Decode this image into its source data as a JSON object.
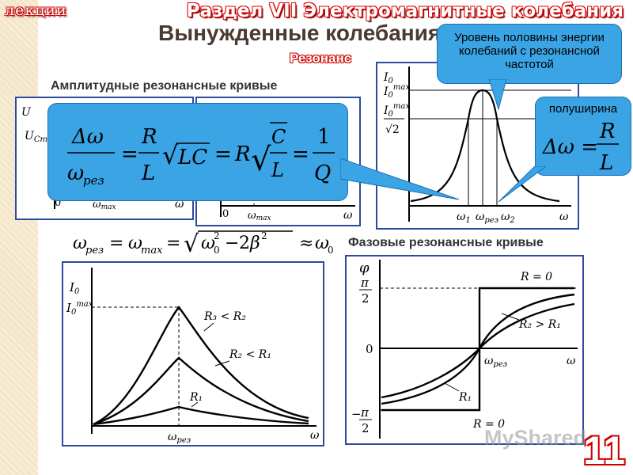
{
  "header": {
    "lecture_tag": "лекции",
    "section": "Раздел VII Электромагнитные колебания",
    "title": "Вынужденные колебания",
    "subtitle": "Резонанс"
  },
  "labels": {
    "amplitude": "Амплитудные резонансные кривые",
    "phase": "Фазовые резонансные кривые"
  },
  "callouts": {
    "half_energy": "Уровень половины энергии колебаний с резонансной частотой",
    "half_width": "полуширина"
  },
  "axes": {
    "I0": "I",
    "I0_sub": "0",
    "max": "max",
    "sqrt2": "√2",
    "omega": "ω",
    "omega1": "ω",
    "omega1_sub": "1",
    "omega2": "ω",
    "omega2_sub": "2",
    "omega_res": "ω",
    "res_sub": "рез",
    "omega_max": "ω",
    "max_sub": "max",
    "zero": "0",
    "U": "U",
    "UCm": "U",
    "Cm_sub": "Cm",
    "phi": "φ",
    "pi": "π",
    "two": "2",
    "minus": "−"
  },
  "curve_labels": {
    "R3R2": "R₃ < R₂",
    "R2R1": "R₂ < R₁",
    "R1": "R₁",
    "R0_top": "R = 0",
    "R2gtR1": "R₂ > R₁",
    "R1_phase": "R₁",
    "R0_bottom": "R = 0"
  },
  "formulas": {
    "main": "Δω/ωрез = R/L·√(LC) = R√(C/L) = 1/Q",
    "res": "ωрез = ωmax = √(ω0² − 2β²) ≈ ω0",
    "half": "Δω = R/L"
  },
  "watermark": "MyShared",
  "slide_number": "11",
  "colors": {
    "accent": "#3aa4e4",
    "frame": "#2b4b9b",
    "title": "#4a3a30",
    "red": "#cc0000"
  }
}
